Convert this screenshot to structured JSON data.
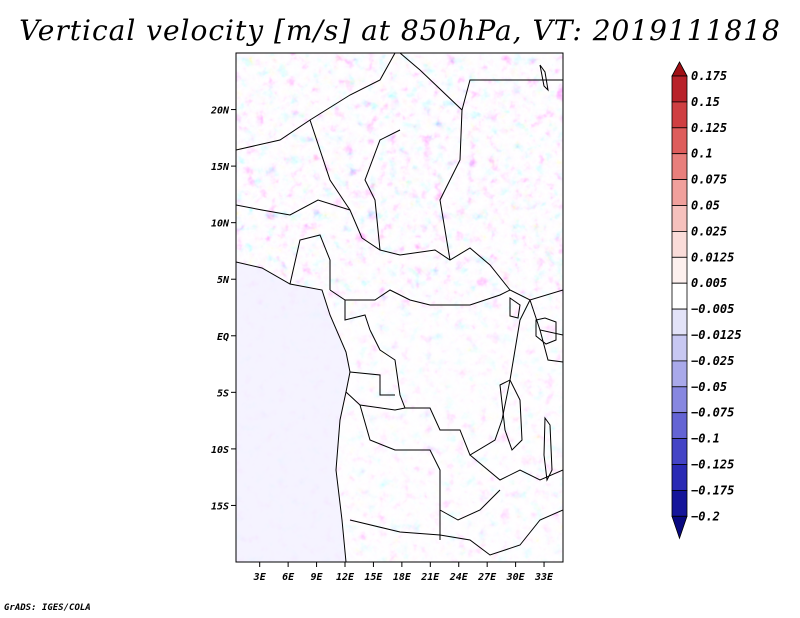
{
  "title": "Vertical velocity [m/s] at 850hPa, VT: 2019111818",
  "credit": "GrADS: IGES/COLA",
  "map": {
    "lat_labels": [
      "20N",
      "15N",
      "10N",
      "5N",
      "EQ",
      "5S",
      "10S",
      "15S"
    ],
    "lon_labels": [
      "3E",
      "6E",
      "9E",
      "12E",
      "15E",
      "18E",
      "21E",
      "24E",
      "27E",
      "30E",
      "33E"
    ],
    "lat_values": [
      20,
      15,
      10,
      5,
      0,
      -5,
      -10,
      -15
    ],
    "lon_values": [
      3,
      6,
      9,
      12,
      15,
      18,
      21,
      24,
      27,
      30,
      33
    ],
    "lon_range": [
      0.5,
      35
    ],
    "lat_range": [
      -20,
      25
    ]
  },
  "colorbar": {
    "labels": [
      "0.175",
      "0.15",
      "0.125",
      "0.1",
      "0.075",
      "0.05",
      "0.025",
      "0.0125",
      "0.005",
      "−0.005",
      "−0.0125",
      "−0.025",
      "−0.05",
      "−0.075",
      "−0.1",
      "−0.125",
      "−0.175",
      "−0.2"
    ],
    "colors": [
      "#a01015",
      "#b8222a",
      "#cf3f42",
      "#de5d5c",
      "#e87f7c",
      "#f0a09c",
      "#f6c1bd",
      "#fadcd9",
      "#fdf0ee",
      "#ffffff",
      "#e3e3f8",
      "#c8c8f2",
      "#a9a9ea",
      "#8787e0",
      "#6464d4",
      "#4444c6",
      "#2a2ab4",
      "#15159a",
      "#090980"
    ]
  }
}
